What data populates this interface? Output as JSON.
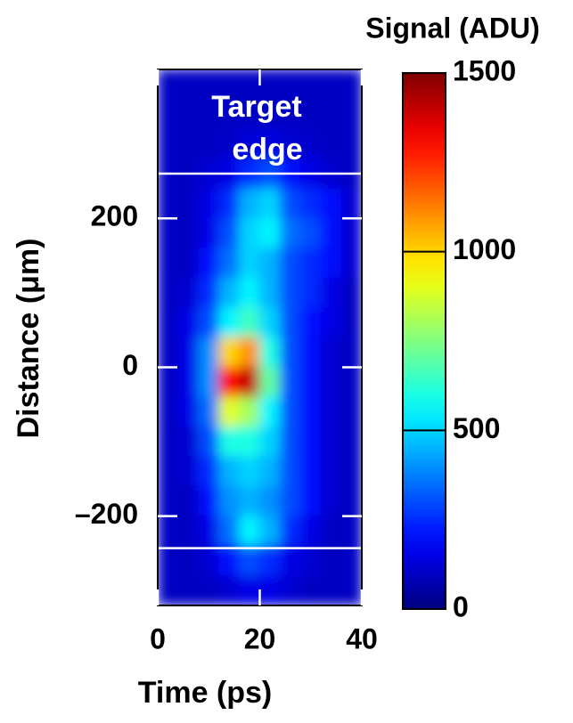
{
  "chart_data": {
    "type": "heatmap",
    "xlabel": "Time (ps)",
    "ylabel": "Distance (μm)",
    "colorbar_label": "Signal (ADU)",
    "annotation": [
      "Target",
      "edge"
    ],
    "hlines": [
      260,
      -243
    ],
    "xlim": [
      0,
      40
    ],
    "xticks": [
      0,
      20,
      40
    ],
    "ylim": [
      -320,
      400
    ],
    "yticks": [
      {
        "value": -200,
        "label": "–200"
      },
      0,
      200
    ],
    "clim": [
      0,
      1500
    ],
    "cticks": [
      0,
      500,
      1000,
      1500
    ],
    "colormap": "jet",
    "x": [
      2,
      6,
      10,
      14,
      18,
      22,
      26,
      30,
      34,
      38
    ],
    "y": [
      380,
      340,
      300,
      260,
      220,
      180,
      140,
      100,
      60,
      20,
      -20,
      -60,
      -100,
      -140,
      -180,
      -220,
      -260,
      -300
    ],
    "values": [
      [
        100,
        100,
        100,
        100,
        100,
        100,
        100,
        100,
        100,
        100
      ],
      [
        100,
        100,
        100,
        100,
        100,
        100,
        100,
        100,
        100,
        100
      ],
      [
        100,
        100,
        100,
        110,
        130,
        140,
        120,
        110,
        100,
        100
      ],
      [
        100,
        100,
        120,
        150,
        250,
        300,
        200,
        150,
        120,
        100
      ],
      [
        100,
        100,
        150,
        250,
        450,
        500,
        300,
        250,
        200,
        120
      ],
      [
        100,
        100,
        150,
        300,
        500,
        550,
        350,
        300,
        200,
        120
      ],
      [
        100,
        100,
        200,
        350,
        500,
        450,
        300,
        250,
        200,
        120
      ],
      [
        100,
        120,
        250,
        450,
        550,
        450,
        300,
        250,
        150,
        100
      ],
      [
        100,
        150,
        300,
        550,
        650,
        500,
        300,
        200,
        150,
        100
      ],
      [
        100,
        150,
        400,
        1000,
        1100,
        600,
        300,
        200,
        120,
        100
      ],
      [
        100,
        150,
        400,
        1300,
        1400,
        700,
        300,
        200,
        120,
        100
      ],
      [
        100,
        150,
        350,
        900,
        800,
        550,
        300,
        200,
        120,
        100
      ],
      [
        100,
        120,
        300,
        600,
        600,
        500,
        300,
        200,
        120,
        100
      ],
      [
        100,
        120,
        250,
        450,
        500,
        450,
        300,
        200,
        120,
        100
      ],
      [
        100,
        100,
        200,
        400,
        450,
        400,
        300,
        200,
        120,
        100
      ],
      [
        100,
        100,
        150,
        350,
        550,
        450,
        250,
        150,
        100,
        100
      ],
      [
        100,
        100,
        120,
        200,
        300,
        250,
        150,
        120,
        100,
        100
      ],
      [
        100,
        100,
        100,
        120,
        150,
        150,
        120,
        100,
        100,
        100
      ]
    ]
  }
}
